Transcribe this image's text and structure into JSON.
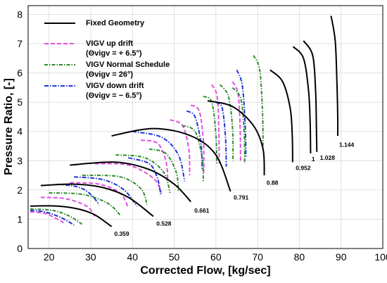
{
  "chart_data": {
    "type": "line",
    "xlabel": "Corrected Flow, [kg/sec]",
    "ylabel": "Pressure Ratio, [-]",
    "xlim": [
      15,
      100
    ],
    "ylim": [
      0,
      8.3
    ],
    "xticks": [
      "20",
      "30",
      "40",
      "50",
      "60",
      "70",
      "80",
      "90",
      "100"
    ],
    "yticks": [
      "0",
      "1",
      "2",
      "3",
      "4",
      "5",
      "6",
      "7",
      "8"
    ],
    "grid": true,
    "legend_position": "top-left",
    "legend": [
      {
        "series": "fixed",
        "label": "Fixed Geometry",
        "sub": ""
      },
      {
        "series": "up",
        "label": "VIGV up drift",
        "sub": "(Θvigv = + 6.5°)"
      },
      {
        "series": "normal",
        "label": "VIGV Normal Schedule",
        "sub": "(Θvigv = 26°)"
      },
      {
        "series": "down",
        "label": "VIGV down drift",
        "sub": "(Θvigv = − 6.5°)"
      }
    ],
    "series": [
      {
        "key": "fixed",
        "name": "Fixed Geometry",
        "color": "#000000",
        "dash": "",
        "speedlines": [
          [
            [
              15.5,
              1.45
            ],
            [
              22,
              1.45
            ],
            [
              27,
              1.35
            ],
            [
              31,
              1.15
            ],
            [
              35,
              0.75
            ]
          ],
          [
            [
              18,
              2.15
            ],
            [
              26,
              2.2
            ],
            [
              33,
              2.08
            ],
            [
              39,
              1.75
            ],
            [
              45,
              1.1
            ]
          ],
          [
            [
              25,
              2.85
            ],
            [
              36,
              2.95
            ],
            [
              44,
              2.7
            ],
            [
              50,
              2.2
            ],
            [
              54,
              1.6
            ]
          ],
          [
            [
              35,
              3.85
            ],
            [
              45,
              4.1
            ],
            [
              54,
              3.85
            ],
            [
              60,
              3.2
            ],
            [
              63.5,
              1.95
            ]
          ],
          [
            [
              58,
              5.05
            ],
            [
              64,
              4.85
            ],
            [
              69,
              4.2
            ],
            [
              71.3,
              3.4
            ],
            [
              71.6,
              2.5
            ]
          ],
          [
            [
              73,
              6.1
            ],
            [
              76,
              5.7
            ],
            [
              77.8,
              4.8
            ],
            [
              78.3,
              3.9
            ],
            [
              78.4,
              2.95
            ]
          ],
          [
            [
              78.5,
              6.9
            ],
            [
              81,
              6.5
            ],
            [
              82.2,
              5.4
            ],
            [
              82.6,
              4.3
            ],
            [
              82.7,
              3.25
            ]
          ],
          [
            [
              81,
              7.1
            ],
            [
              83.2,
              6.6
            ],
            [
              83.9,
              5.4
            ],
            [
              84.1,
              4.1
            ],
            [
              84.2,
              3.3
            ]
          ],
          [
            [
              87.6,
              7.95
            ],
            [
              88.6,
              7.1
            ],
            [
              89,
              5.7
            ],
            [
              89.2,
              4.5
            ],
            [
              89.2,
              3.85
            ]
          ]
        ]
      },
      {
        "key": "up",
        "name": "VIGV up drift",
        "color": "#e14fe3",
        "dash": "6,3",
        "speedlines": [
          [
            [
              15.5,
              1.25
            ],
            [
              19,
              1.2
            ],
            [
              22,
              1.0
            ],
            [
              23.5,
              0.88
            ]
          ],
          [
            [
              18,
              1.75
            ],
            [
              24,
              1.7
            ],
            [
              29,
              1.45
            ],
            [
              31,
              1.1
            ]
          ],
          [
            [
              25,
              2.25
            ],
            [
              32,
              2.2
            ],
            [
              37,
              1.9
            ],
            [
              39,
              1.4
            ]
          ],
          [
            [
              31,
              2.9
            ],
            [
              39,
              2.85
            ],
            [
              45,
              2.4
            ],
            [
              47,
              1.9
            ]
          ],
          [
            [
              42,
              3.7
            ],
            [
              46,
              3.6
            ],
            [
              48,
              3.0
            ],
            [
              48.5,
              2.3
            ]
          ],
          [
            [
              49,
              4.4
            ],
            [
              52,
              4.2
            ],
            [
              53.5,
              3.4
            ],
            [
              53.7,
              2.5
            ]
          ],
          [
            [
              54,
              4.9
            ],
            [
              56,
              4.7
            ],
            [
              57,
              3.7
            ],
            [
              57.1,
              2.6
            ]
          ],
          [
            [
              59,
              5.6
            ],
            [
              60.3,
              5.2
            ],
            [
              60.7,
              4.0
            ],
            [
              60.8,
              2.9
            ]
          ],
          [
            [
              64,
              5.7
            ],
            [
              65.3,
              5.3
            ],
            [
              65.8,
              4.2
            ],
            [
              65.9,
              3.0
            ]
          ]
        ]
      },
      {
        "key": "normal",
        "name": "VIGV Normal Schedule",
        "color": "#2e8b2e",
        "dash": "5,2,1.5,2",
        "speedlines": [
          [
            [
              15.5,
              1.35
            ],
            [
              21,
              1.3
            ],
            [
              25,
              1.1
            ],
            [
              28,
              0.82
            ]
          ],
          [
            [
              20,
              1.9
            ],
            [
              28,
              1.85
            ],
            [
              34,
              1.55
            ],
            [
              37,
              1.15
            ]
          ],
          [
            [
              28,
              2.5
            ],
            [
              37,
              2.45
            ],
            [
              42,
              2.05
            ],
            [
              43.5,
              1.5
            ]
          ],
          [
            [
              36,
              3.2
            ],
            [
              43,
              3.1
            ],
            [
              47.5,
              2.6
            ],
            [
              49,
              1.9
            ]
          ],
          [
            [
              44,
              3.4
            ],
            [
              48,
              3.25
            ],
            [
              50.5,
              2.6
            ],
            [
              51,
              1.95
            ]
          ],
          [
            [
              52,
              4.2
            ],
            [
              55,
              4.0
            ],
            [
              56.7,
              3.1
            ],
            [
              57,
              2.3
            ]
          ],
          [
            [
              57,
              5.2
            ],
            [
              59,
              5.0
            ],
            [
              60,
              3.9
            ],
            [
              60.2,
              2.9
            ]
          ],
          [
            [
              61,
              5.6
            ],
            [
              63,
              5.2
            ],
            [
              64,
              4.1
            ],
            [
              64.1,
              3.0
            ]
          ],
          [
            [
              64,
              5.5
            ],
            [
              66,
              5.1
            ],
            [
              66.8,
              3.9
            ],
            [
              66.9,
              2.9
            ]
          ],
          [
            [
              69,
              6.6
            ],
            [
              70.5,
              6.1
            ],
            [
              71.2,
              4.6
            ],
            [
              71.3,
              3.4
            ]
          ]
        ]
      },
      {
        "key": "down",
        "name": "VIGV down drift",
        "color": "#1f35d6",
        "dash": "6,2,1.5,2",
        "speedlines": [
          [
            [
              15.5,
              1.3
            ],
            [
              19,
              1.25
            ],
            [
              23,
              1.05
            ],
            [
              26,
              0.8
            ]
          ],
          [
            [
              22,
              2.2
            ],
            [
              27,
              2.1
            ],
            [
              30,
              1.85
            ],
            [
              32,
              1.5
            ]
          ],
          [
            [
              26,
              2.45
            ],
            [
              33,
              2.35
            ],
            [
              38,
              2.0
            ],
            [
              41,
              1.45
            ]
          ],
          [
            [
              39,
              3.1
            ],
            [
              44,
              2.9
            ],
            [
              46,
              2.4
            ],
            [
              46.8,
              1.8
            ]
          ],
          [
            [
              40,
              4.0
            ],
            [
              47,
              3.8
            ],
            [
              51,
              3.2
            ],
            [
              52.5,
              2.3
            ]
          ],
          [
            [
              53,
              4.7
            ],
            [
              55,
              4.5
            ],
            [
              56.4,
              3.6
            ],
            [
              56.7,
              2.7
            ]
          ],
          [
            [
              60,
              5.0
            ],
            [
              61.5,
              4.8
            ],
            [
              62.3,
              3.8
            ],
            [
              62.5,
              2.8
            ]
          ],
          [
            [
              65,
              6.1
            ],
            [
              66.3,
              5.6
            ],
            [
              67,
              4.3
            ],
            [
              67.2,
              3.1
            ]
          ]
        ]
      }
    ],
    "point_labels": [
      {
        "text": "0.359",
        "x": 35.3,
        "y": 0.5
      },
      {
        "text": "0.528",
        "x": 45.4,
        "y": 0.85
      },
      {
        "text": "0.661",
        "x": 54.5,
        "y": 1.3
      },
      {
        "text": "0.791",
        "x": 63.9,
        "y": 1.75
      },
      {
        "text": "0.88",
        "x": 71.8,
        "y": 2.25
      },
      {
        "text": "0.952",
        "x": 78.8,
        "y": 2.75
      },
      {
        "text": "1",
        "x": 82.6,
        "y": 3.05
      },
      {
        "text": "1.028",
        "x": 84.6,
        "y": 3.1
      },
      {
        "text": "1.144",
        "x": 89.2,
        "y": 3.55
      }
    ]
  }
}
